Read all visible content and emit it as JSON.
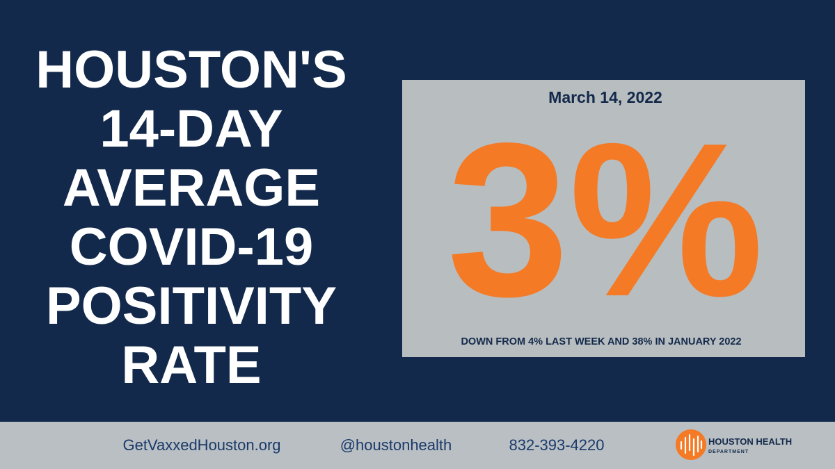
{
  "title_lines": [
    "HOUSTON'S",
    "14-DAY",
    "AVERAGE",
    "COVID-19",
    "POSITIVITY",
    "RATE"
  ],
  "panel": {
    "date": "March 14, 2022",
    "value": "3%",
    "note": "DOWN FROM 4% LAST WEEK AND 38% IN JANUARY 2022"
  },
  "footer": {
    "website": "GetVaxxedHouston.org",
    "handle": "@houstonhealth",
    "phone": "832-393-4220",
    "logo": {
      "name": "HOUSTON HEALTH",
      "subtitle": "DEPARTMENT"
    }
  }
}
